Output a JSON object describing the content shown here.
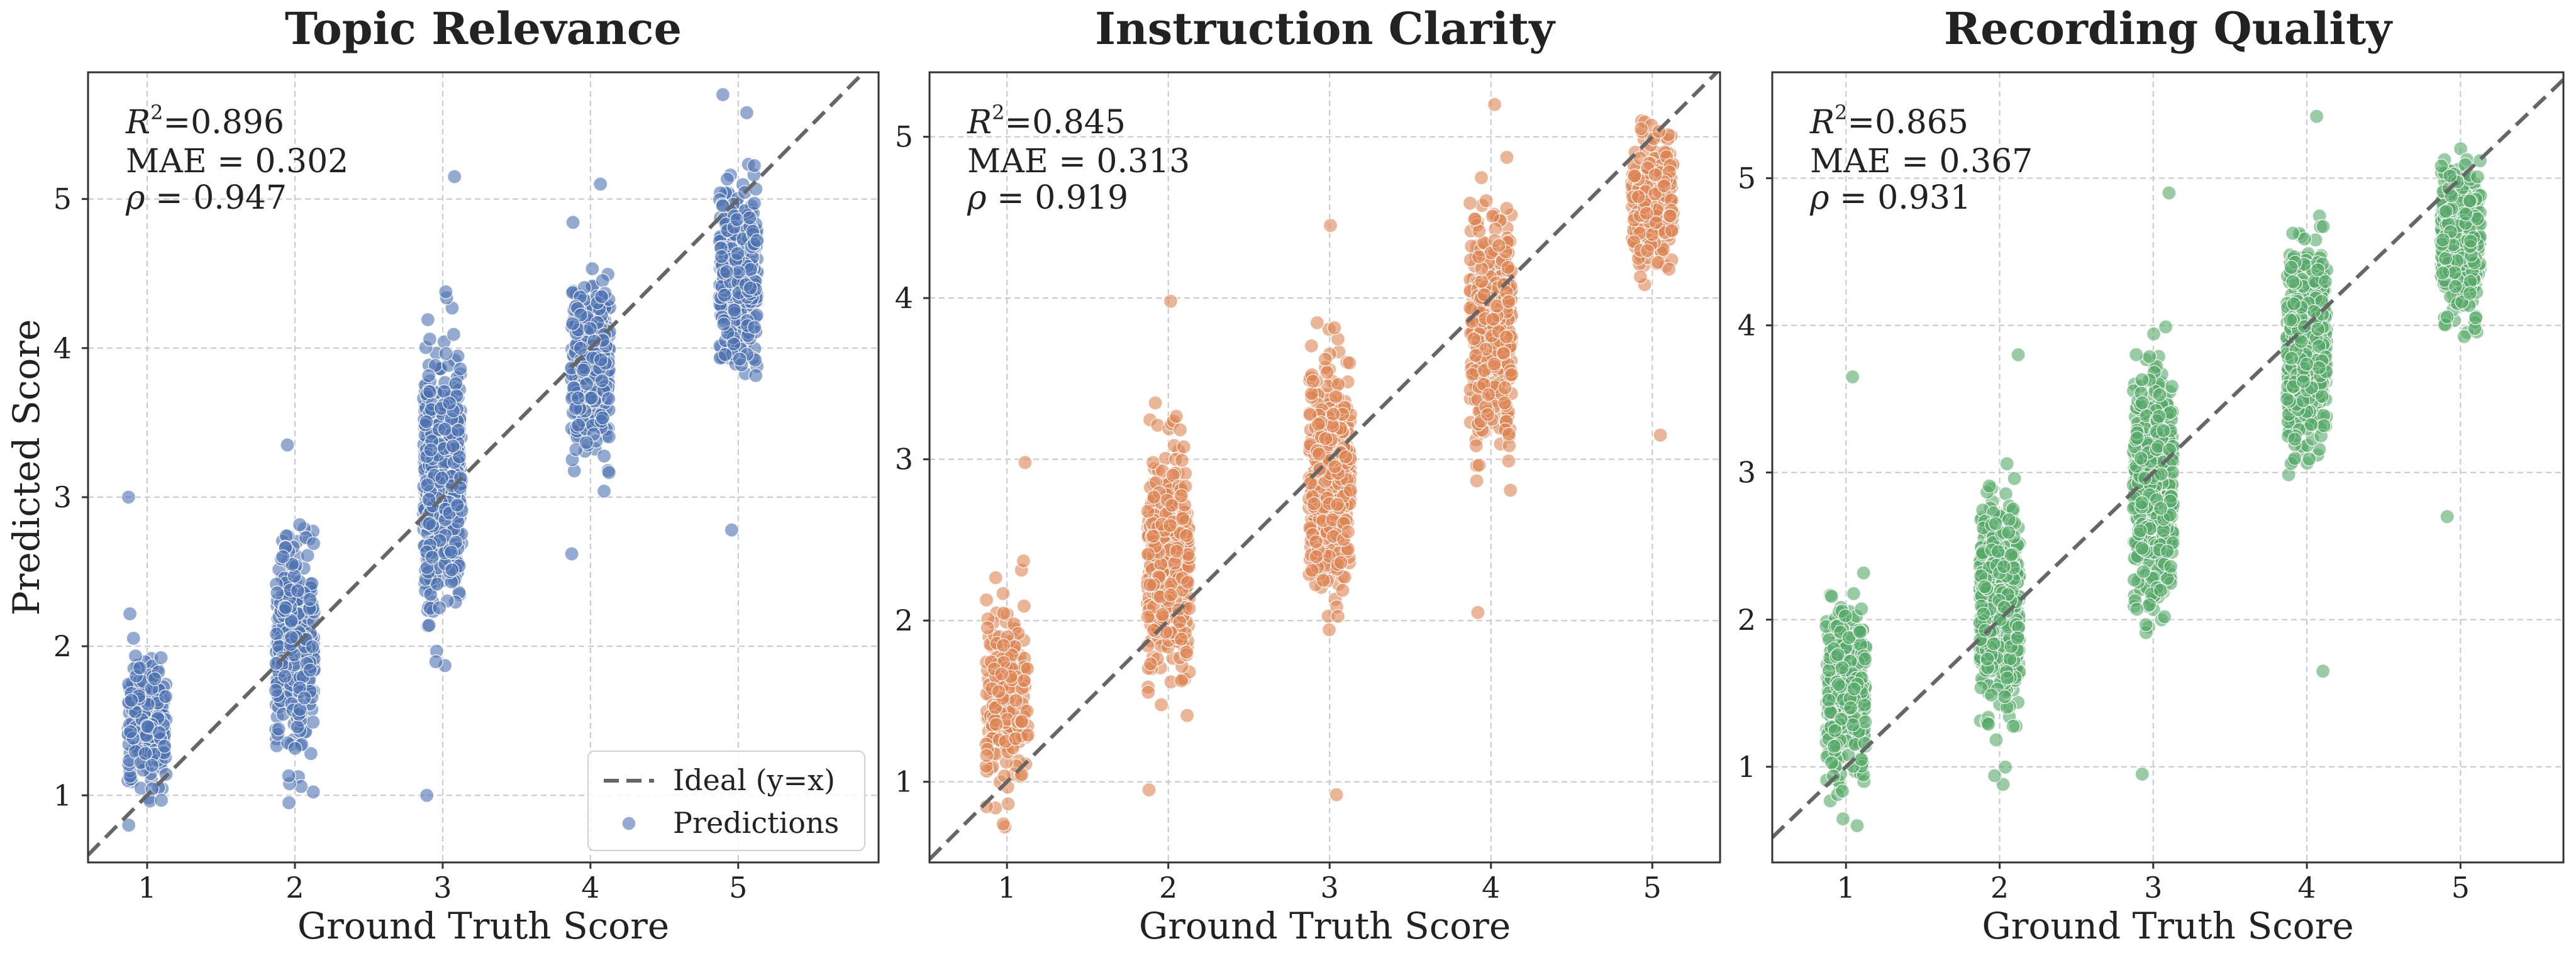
{
  "colors": {
    "series": [
      "#4C72B0",
      "#DD8452",
      "#55A868"
    ],
    "ideal_line": "#666666",
    "grid": "#c8c8c8",
    "frame": "#333333"
  },
  "legend": {
    "ideal": "Ideal (y=x)",
    "predictions": "Predictions"
  },
  "chart_data": [
    {
      "type": "scatter",
      "title": "Topic Relevance",
      "xlabel": "Ground Truth Score",
      "ylabel": "Predicted Score",
      "xlim": [
        0.6,
        5.95
      ],
      "ylim": [
        0.55,
        5.85
      ],
      "xticks": [
        "1",
        "2",
        "3",
        "4",
        "5"
      ],
      "yticks": [
        "1",
        "2",
        "3",
        "4",
        "5"
      ],
      "grid": true,
      "legend_position": "bottom-right",
      "stats": {
        "r2_label": "R",
        "r2_value": "=0.896",
        "mae": "MAE = 0.302",
        "rho_label": "ρ",
        "rho_value": "= 0.947"
      },
      "clusters": [
        {
          "x": 1,
          "count": 220,
          "center": 1.5,
          "spread": 0.45,
          "min": 0.8,
          "max": 3.0
        },
        {
          "x": 2,
          "count": 380,
          "center": 2.0,
          "spread": 0.55,
          "min": 0.95,
          "max": 3.35
        },
        {
          "x": 3,
          "count": 520,
          "center": 3.1,
          "spread": 0.75,
          "min": 1.0,
          "max": 5.15
        },
        {
          "x": 4,
          "count": 400,
          "center": 3.9,
          "spread": 0.5,
          "min": 2.62,
          "max": 5.1
        },
        {
          "x": 5,
          "count": 380,
          "center": 4.5,
          "spread": 0.5,
          "min": 2.78,
          "max": 5.7
        }
      ]
    },
    {
      "type": "scatter",
      "title": "Instruction Clarity",
      "xlabel": "Ground Truth Score",
      "ylabel": "",
      "xlim": [
        0.52,
        5.42
      ],
      "ylim": [
        0.5,
        5.4
      ],
      "xticks": [
        "1",
        "2",
        "3",
        "4",
        "5"
      ],
      "yticks": [
        "1",
        "2",
        "3",
        "4",
        "5"
      ],
      "grid": true,
      "stats": {
        "r2_label": "R",
        "r2_value": "=0.845",
        "mae": "MAE = 0.313",
        "rho_label": "ρ",
        "rho_value": "= 0.919"
      },
      "clusters": [
        {
          "x": 1,
          "count": 200,
          "center": 1.5,
          "spread": 0.55,
          "min": 0.72,
          "max": 2.98
        },
        {
          "x": 2,
          "count": 400,
          "center": 2.4,
          "spread": 0.6,
          "min": 0.95,
          "max": 3.98
        },
        {
          "x": 3,
          "count": 450,
          "center": 2.9,
          "spread": 0.6,
          "min": 0.92,
          "max": 4.45
        },
        {
          "x": 4,
          "count": 420,
          "center": 3.8,
          "spread": 0.6,
          "min": 2.05,
          "max": 5.2
        },
        {
          "x": 5,
          "count": 300,
          "center": 4.6,
          "spread": 0.35,
          "min": 3.15,
          "max": 5.1
        }
      ]
    },
    {
      "type": "scatter",
      "title": "Recording Quality",
      "xlabel": "Ground Truth Score",
      "ylabel": "",
      "xlim": [
        0.52,
        5.67
      ],
      "ylim": [
        0.35,
        5.72
      ],
      "xticks": [
        "1",
        "2",
        "3",
        "4",
        "5"
      ],
      "yticks": [
        "1",
        "2",
        "3",
        "4",
        "5"
      ],
      "grid": true,
      "stats": {
        "r2_label": "R",
        "r2_value": "=0.865",
        "mae": "MAE = 0.367",
        "rho_label": "ρ",
        "rho_value": "= 0.931"
      },
      "clusters": [
        {
          "x": 1,
          "count": 350,
          "center": 1.5,
          "spread": 0.5,
          "min": 0.6,
          "max": 3.65
        },
        {
          "x": 2,
          "count": 520,
          "center": 2.1,
          "spread": 0.6,
          "min": 0.88,
          "max": 3.8
        },
        {
          "x": 3,
          "count": 600,
          "center": 2.9,
          "spread": 0.65,
          "min": 0.95,
          "max": 4.9
        },
        {
          "x": 4,
          "count": 600,
          "center": 3.85,
          "spread": 0.55,
          "min": 1.65,
          "max": 5.42
        },
        {
          "x": 5,
          "count": 420,
          "center": 4.6,
          "spread": 0.4,
          "min": 2.7,
          "max": 5.2
        }
      ]
    }
  ]
}
